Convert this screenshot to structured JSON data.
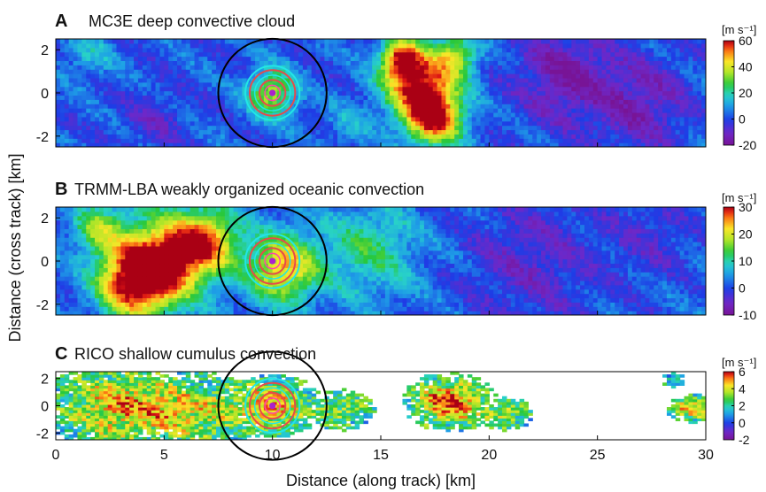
{
  "figure": {
    "ylabel": "Distance (cross track) [km]",
    "xlabel": "Distance (along track) [km]",
    "x_ticks": [
      0,
      5,
      10,
      15,
      20,
      25,
      30
    ],
    "y_ticks": [
      2,
      0,
      -2
    ]
  },
  "chart_data": [
    {
      "type": "heatmap",
      "letter": "A",
      "title": "MC3E deep convective cloud",
      "unit_label": "[m s⁻¹]",
      "xlim": [
        0,
        30
      ],
      "ylim": [
        -2.5,
        2.5
      ],
      "colorbar_ticks": [
        60,
        40,
        20,
        0,
        -20
      ],
      "clim": [
        -20,
        60
      ],
      "rings_center": [
        10,
        0
      ],
      "features": [
        {
          "x": 16.8,
          "y": 0.4,
          "r": 1.6,
          "v": 55
        },
        {
          "x": 17.5,
          "y": -1.2,
          "r": 1.3,
          "v": 50
        },
        {
          "x": 15.9,
          "y": 1.6,
          "r": 0.9,
          "v": 45
        },
        {
          "x": 18.5,
          "y": 1.8,
          "r": 1.0,
          "v": 30
        },
        {
          "x": 10.0,
          "y": 0.0,
          "r": 1.1,
          "v": 35
        },
        {
          "x": 23.5,
          "y": 0.8,
          "r": 2.2,
          "v": -18
        },
        {
          "x": 27.0,
          "y": -0.5,
          "r": 2.0,
          "v": -16
        },
        {
          "x": 4.5,
          "y": -1.2,
          "r": 1.5,
          "v": -8
        },
        {
          "x": 1.5,
          "y": 1.8,
          "r": 1.2,
          "v": 12
        },
        {
          "x": 13.5,
          "y": -1.5,
          "r": 1.2,
          "v": 8
        }
      ]
    },
    {
      "type": "heatmap",
      "letter": "B",
      "title": "TRMM-LBA weakly organized oceanic convection",
      "unit_label": "[m s⁻¹]",
      "xlim": [
        0,
        30
      ],
      "ylim": [
        -2.5,
        2.5
      ],
      "colorbar_ticks": [
        30,
        20,
        10,
        0,
        -10
      ],
      "clim": [
        -10,
        30
      ],
      "rings_center": [
        10,
        0
      ],
      "features": [
        {
          "x": 5.0,
          "y": 0.0,
          "r": 2.0,
          "v": 28
        },
        {
          "x": 3.5,
          "y": -1.0,
          "r": 1.6,
          "v": 24
        },
        {
          "x": 7.0,
          "y": 1.0,
          "r": 1.5,
          "v": 20
        },
        {
          "x": 10.5,
          "y": -0.3,
          "r": 1.6,
          "v": 22
        },
        {
          "x": 2.0,
          "y": 1.5,
          "r": 1.2,
          "v": 14
        },
        {
          "x": 14.5,
          "y": 0.5,
          "r": 2.2,
          "v": 10
        },
        {
          "x": 22.0,
          "y": 0.0,
          "r": 3.0,
          "v": -6
        },
        {
          "x": 27.5,
          "y": 1.2,
          "r": 2.0,
          "v": -4
        }
      ]
    },
    {
      "type": "heatmap",
      "letter": "C",
      "title": "RICO shallow cumulus convection",
      "unit_label": "[m s⁻¹]",
      "xlim": [
        0,
        30
      ],
      "ylim": [
        -2.5,
        2.5
      ],
      "colorbar_ticks": [
        6,
        4,
        2,
        0,
        -2
      ],
      "clim": [
        -2,
        6
      ],
      "rings_center": [
        10,
        0
      ],
      "features": [
        {
          "x": 3.0,
          "y": 0.0,
          "r": 2.6,
          "v": 3
        },
        {
          "x": 6.5,
          "y": -0.5,
          "r": 2.2,
          "v": 2
        },
        {
          "x": 10.0,
          "y": 0.0,
          "r": 1.7,
          "v": 3
        },
        {
          "x": 13.2,
          "y": -0.3,
          "r": 1.1,
          "v": 2
        },
        {
          "x": 18.2,
          "y": 0.3,
          "r": 1.6,
          "v": 4
        },
        {
          "x": 20.8,
          "y": -0.6,
          "r": 0.9,
          "v": 2
        },
        {
          "x": 28.5,
          "y": 1.9,
          "r": 0.4,
          "v": 1
        },
        {
          "x": 29.3,
          "y": -0.2,
          "r": 0.8,
          "v": 3
        }
      ]
    }
  ]
}
